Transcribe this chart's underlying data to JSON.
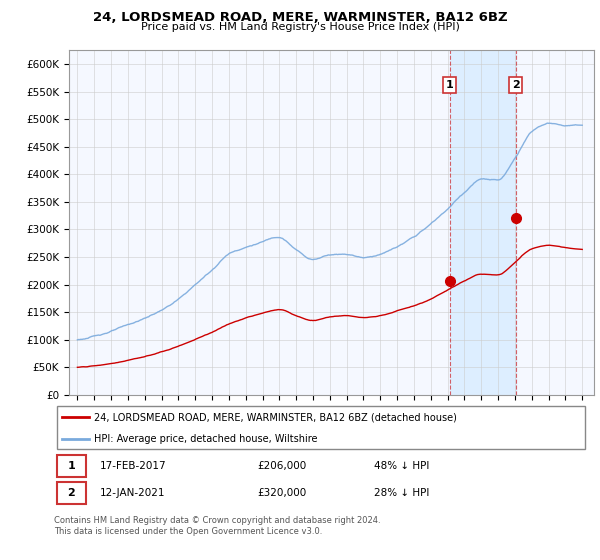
{
  "title1": "24, LORDSMEAD ROAD, MERE, WARMINSTER, BA12 6BZ",
  "title2": "Price paid vs. HM Land Registry's House Price Index (HPI)",
  "background_color": "#ffffff",
  "plot_bg_color": "#f5f8ff",
  "grid_color": "#cccccc",
  "hpi_color": "#7aaadd",
  "price_color": "#cc0000",
  "shade_color": "#ddeeff",
  "ylim": [
    0,
    625000
  ],
  "yticks": [
    0,
    50000,
    100000,
    150000,
    200000,
    250000,
    300000,
    350000,
    400000,
    450000,
    500000,
    550000,
    600000
  ],
  "ytick_labels": [
    "£0",
    "£50K",
    "£100K",
    "£150K",
    "£200K",
    "£250K",
    "£300K",
    "£350K",
    "£400K",
    "£450K",
    "£500K",
    "£550K",
    "£600K"
  ],
  "sale1_year": 2017.12,
  "sale1_price": 206000,
  "sale2_year": 2021.04,
  "sale2_price": 320000,
  "legend_line1": "24, LORDSMEAD ROAD, MERE, WARMINSTER, BA12 6BZ (detached house)",
  "legend_line2": "HPI: Average price, detached house, Wiltshire",
  "footer": "Contains HM Land Registry data © Crown copyright and database right 2024.\nThis data is licensed under the Open Government Licence v3.0.",
  "xmin": 1994.5,
  "xmax": 2025.7
}
